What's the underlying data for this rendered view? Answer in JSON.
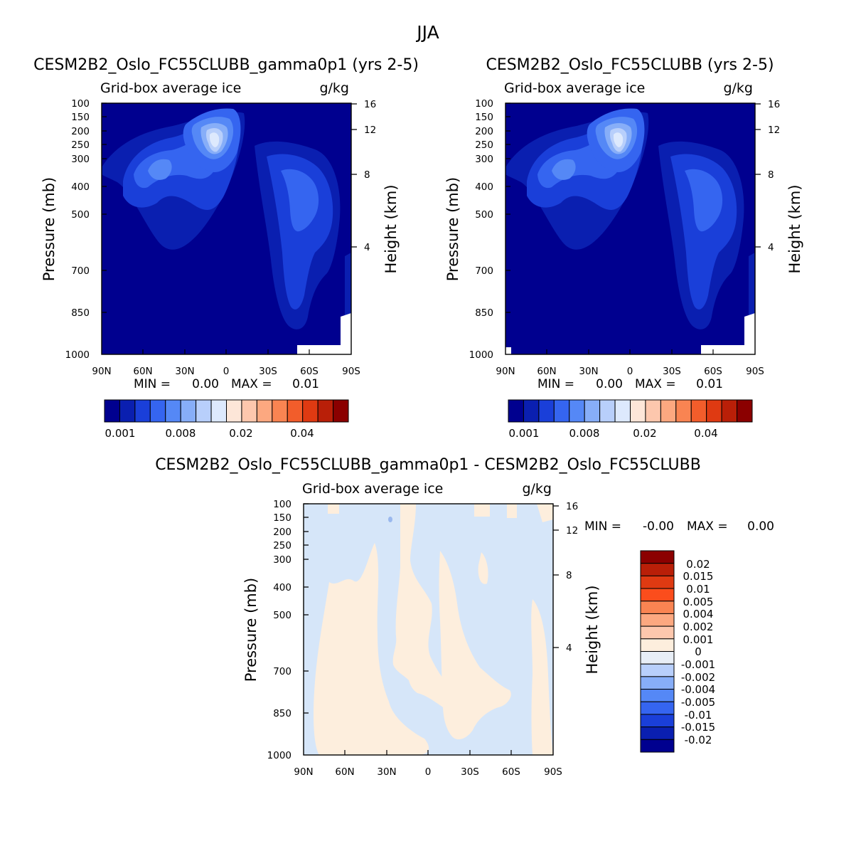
{
  "page_title": "JJA",
  "chart_data": [
    {
      "type": "heatmap",
      "title": "CESM2B2_Oslo_FC55CLUBB_gamma0p1 (yrs 2-5)",
      "subtitle_left": "Grid-box average ice",
      "subtitle_right": "g/kg",
      "xlabel": "",
      "ylabel": "Pressure (mb)",
      "ylabel_right": "Height (km)",
      "x_ticks": [
        "90N",
        "60N",
        "30N",
        "0",
        "30S",
        "60S",
        "90S"
      ],
      "y_ticks": [
        "100",
        "150",
        "200",
        "250",
        "300",
        "400",
        "500",
        "700",
        "850",
        "1000"
      ],
      "y_right_ticks": [
        "16",
        "12",
        "8",
        "4"
      ],
      "min_label": "MIN =",
      "min_value": "0.00",
      "max_label": "MAX =",
      "max_value": "0.01",
      "colorbar_labels": [
        "0.001",
        "0.008",
        "0.02",
        "0.04"
      ],
      "colorbar_colors": [
        "#00008f",
        "#0a1fb0",
        "#1a3fd9",
        "#3565f0",
        "#5588f6",
        "#87aef8",
        "#b8cffb",
        "#dde9fd",
        "#fde6d8",
        "#fdc7ad",
        "#fca880",
        "#f98452",
        "#f25d2b",
        "#df3a12",
        "#b91f08",
        "#8b0000"
      ]
    },
    {
      "type": "heatmap",
      "title": "CESM2B2_Oslo_FC55CLUBB (yrs 2-5)",
      "subtitle_left": "Grid-box average ice",
      "subtitle_right": "g/kg",
      "xlabel": "",
      "ylabel": "Pressure (mb)",
      "ylabel_right": "Height (km)",
      "x_ticks": [
        "90N",
        "60N",
        "30N",
        "0",
        "30S",
        "60S",
        "90S"
      ],
      "y_ticks": [
        "100",
        "150",
        "200",
        "250",
        "300",
        "400",
        "500",
        "700",
        "850",
        "1000"
      ],
      "y_right_ticks": [
        "16",
        "12",
        "8",
        "4"
      ],
      "min_label": "MIN =",
      "min_value": "0.00",
      "max_label": "MAX =",
      "max_value": "0.01",
      "colorbar_labels": [
        "0.001",
        "0.008",
        "0.02",
        "0.04"
      ],
      "colorbar_colors": [
        "#00008f",
        "#0a1fb0",
        "#1a3fd9",
        "#3565f0",
        "#5588f6",
        "#87aef8",
        "#b8cffb",
        "#dde9fd",
        "#fde6d8",
        "#fdc7ad",
        "#fca880",
        "#f98452",
        "#f25d2b",
        "#df3a12",
        "#b91f08",
        "#8b0000"
      ]
    },
    {
      "type": "heatmap",
      "title": "CESM2B2_Oslo_FC55CLUBB_gamma0p1 - CESM2B2_Oslo_FC55CLUBB",
      "subtitle_left": "Grid-box average ice",
      "subtitle_right": "g/kg",
      "xlabel": "",
      "ylabel": "Pressure (mb)",
      "ylabel_right": "Height (km)",
      "x_ticks": [
        "90N",
        "60N",
        "30N",
        "0",
        "30S",
        "60S",
        "90S"
      ],
      "y_ticks": [
        "100",
        "150",
        "200",
        "250",
        "300",
        "400",
        "500",
        "700",
        "850",
        "1000"
      ],
      "y_right_ticks": [
        "16",
        "12",
        "8",
        "4"
      ],
      "min_label": "MIN =",
      "min_value": "-0.00",
      "max_label": "MAX =",
      "max_value": "0.00",
      "colorbar_labels": [
        "0.02",
        "0.015",
        "0.01",
        "0.005",
        "0.004",
        "0.002",
        "0.001",
        "0",
        "-0.001",
        "-0.002",
        "-0.004",
        "-0.005",
        "-0.01",
        "-0.015",
        "-0.02"
      ],
      "colorbar_colors": [
        "#8b0000",
        "#b91f08",
        "#df3a12",
        "#fb4d1c",
        "#f98452",
        "#fca880",
        "#fdc7ad",
        "#fdeedd",
        "#e8eef6",
        "#b8cffb",
        "#87aef8",
        "#5588f6",
        "#3565f0",
        "#1a3fd9",
        "#0a1fb0",
        "#00008f"
      ]
    }
  ],
  "colors": {
    "panel_background": "#00008f",
    "contour_1": "#0a1fb0",
    "contour_2": "#1a3fd9",
    "contour_3": "#3565f0",
    "contour_4": "#5588f6",
    "contour_5": "#87aef8",
    "contour_6": "#b8cffb",
    "contour_7": "#dde9fd",
    "diff_negative": "#d6e6f9",
    "diff_positive": "#fdeedd",
    "diff_blue_spot": "#9ab8ee"
  }
}
